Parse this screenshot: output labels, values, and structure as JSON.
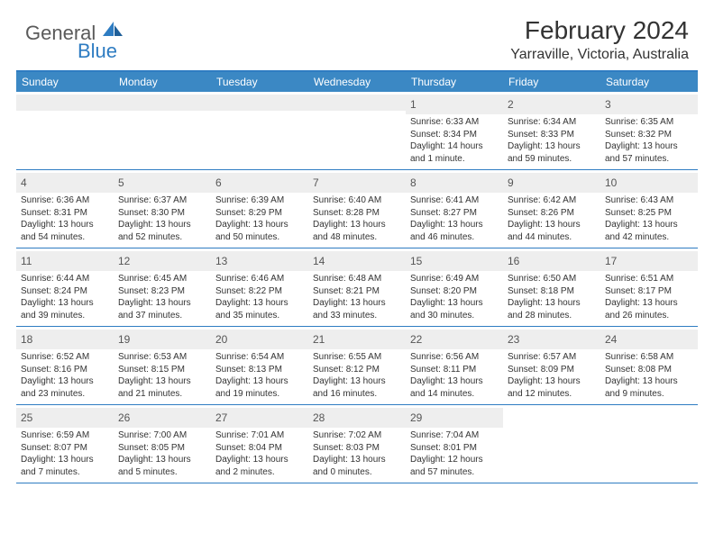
{
  "brand": {
    "part1": "General",
    "part2": "Blue"
  },
  "title": "February 2024",
  "location": "Yarraville, Victoria, Australia",
  "weekday_bg": "#3b88c4",
  "accent": "#2e7cc2",
  "daynum_bg": "#eeeeee",
  "weekdays": [
    "Sunday",
    "Monday",
    "Tuesday",
    "Wednesday",
    "Thursday",
    "Friday",
    "Saturday"
  ],
  "weeks": [
    [
      null,
      null,
      null,
      null,
      {
        "n": "1",
        "sr": "6:33 AM",
        "ss": "8:34 PM",
        "dl": "14 hours and 1 minute."
      },
      {
        "n": "2",
        "sr": "6:34 AM",
        "ss": "8:33 PM",
        "dl": "13 hours and 59 minutes."
      },
      {
        "n": "3",
        "sr": "6:35 AM",
        "ss": "8:32 PM",
        "dl": "13 hours and 57 minutes."
      }
    ],
    [
      {
        "n": "4",
        "sr": "6:36 AM",
        "ss": "8:31 PM",
        "dl": "13 hours and 54 minutes."
      },
      {
        "n": "5",
        "sr": "6:37 AM",
        "ss": "8:30 PM",
        "dl": "13 hours and 52 minutes."
      },
      {
        "n": "6",
        "sr": "6:39 AM",
        "ss": "8:29 PM",
        "dl": "13 hours and 50 minutes."
      },
      {
        "n": "7",
        "sr": "6:40 AM",
        "ss": "8:28 PM",
        "dl": "13 hours and 48 minutes."
      },
      {
        "n": "8",
        "sr": "6:41 AM",
        "ss": "8:27 PM",
        "dl": "13 hours and 46 minutes."
      },
      {
        "n": "9",
        "sr": "6:42 AM",
        "ss": "8:26 PM",
        "dl": "13 hours and 44 minutes."
      },
      {
        "n": "10",
        "sr": "6:43 AM",
        "ss": "8:25 PM",
        "dl": "13 hours and 42 minutes."
      }
    ],
    [
      {
        "n": "11",
        "sr": "6:44 AM",
        "ss": "8:24 PM",
        "dl": "13 hours and 39 minutes."
      },
      {
        "n": "12",
        "sr": "6:45 AM",
        "ss": "8:23 PM",
        "dl": "13 hours and 37 minutes."
      },
      {
        "n": "13",
        "sr": "6:46 AM",
        "ss": "8:22 PM",
        "dl": "13 hours and 35 minutes."
      },
      {
        "n": "14",
        "sr": "6:48 AM",
        "ss": "8:21 PM",
        "dl": "13 hours and 33 minutes."
      },
      {
        "n": "15",
        "sr": "6:49 AM",
        "ss": "8:20 PM",
        "dl": "13 hours and 30 minutes."
      },
      {
        "n": "16",
        "sr": "6:50 AM",
        "ss": "8:18 PM",
        "dl": "13 hours and 28 minutes."
      },
      {
        "n": "17",
        "sr": "6:51 AM",
        "ss": "8:17 PM",
        "dl": "13 hours and 26 minutes."
      }
    ],
    [
      {
        "n": "18",
        "sr": "6:52 AM",
        "ss": "8:16 PM",
        "dl": "13 hours and 23 minutes."
      },
      {
        "n": "19",
        "sr": "6:53 AM",
        "ss": "8:15 PM",
        "dl": "13 hours and 21 minutes."
      },
      {
        "n": "20",
        "sr": "6:54 AM",
        "ss": "8:13 PM",
        "dl": "13 hours and 19 minutes."
      },
      {
        "n": "21",
        "sr": "6:55 AM",
        "ss": "8:12 PM",
        "dl": "13 hours and 16 minutes."
      },
      {
        "n": "22",
        "sr": "6:56 AM",
        "ss": "8:11 PM",
        "dl": "13 hours and 14 minutes."
      },
      {
        "n": "23",
        "sr": "6:57 AM",
        "ss": "8:09 PM",
        "dl": "13 hours and 12 minutes."
      },
      {
        "n": "24",
        "sr": "6:58 AM",
        "ss": "8:08 PM",
        "dl": "13 hours and 9 minutes."
      }
    ],
    [
      {
        "n": "25",
        "sr": "6:59 AM",
        "ss": "8:07 PM",
        "dl": "13 hours and 7 minutes."
      },
      {
        "n": "26",
        "sr": "7:00 AM",
        "ss": "8:05 PM",
        "dl": "13 hours and 5 minutes."
      },
      {
        "n": "27",
        "sr": "7:01 AM",
        "ss": "8:04 PM",
        "dl": "13 hours and 2 minutes."
      },
      {
        "n": "28",
        "sr": "7:02 AM",
        "ss": "8:03 PM",
        "dl": "13 hours and 0 minutes."
      },
      {
        "n": "29",
        "sr": "7:04 AM",
        "ss": "8:01 PM",
        "dl": "12 hours and 57 minutes."
      },
      null,
      null
    ]
  ],
  "labels": {
    "sunrise": "Sunrise:",
    "sunset": "Sunset:",
    "daylight": "Daylight:"
  }
}
